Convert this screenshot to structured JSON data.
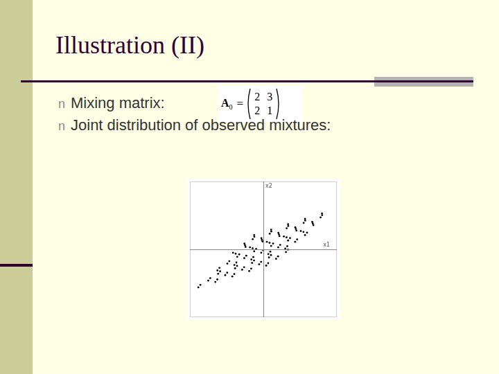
{
  "slide": {
    "title": "Illustration (II)",
    "bullet": "n",
    "bullets": [
      "Mixing matrix:",
      "Joint distribution of observed mixtures:"
    ],
    "matrix": {
      "name": "A",
      "subscript": "0",
      "relation": "=",
      "rows": [
        [
          2,
          3
        ],
        [
          2,
          1
        ]
      ]
    }
  },
  "chart_data": {
    "type": "scatter",
    "x_label": "x1",
    "y_label": "x2",
    "color": "#000000",
    "marker": "dot",
    "xlim": [
      -5.2,
      5.2
    ],
    "ylim": [
      -5,
      5
    ],
    "tick_labels": false,
    "grid": false,
    "x": [
      -4.6,
      -3.4,
      -2.2,
      -1.0,
      0.2,
      -3.9,
      -2.7,
      -1.5,
      -0.3,
      0.9,
      -3.2,
      -2.0,
      -0.8,
      0.4,
      1.6,
      -3.25,
      -2.05,
      -0.85,
      0.35,
      1.55,
      -2.55,
      -1.35,
      -0.15,
      1.05,
      2.25,
      -1.85,
      -0.65,
      0.55,
      1.75,
      2.95,
      -1.96,
      -0.76,
      0.44,
      1.64,
      2.84,
      -1.26,
      -0.06,
      1.14,
      2.34,
      3.54,
      -1.34,
      -0.14,
      1.06,
      2.26,
      3.46,
      -0.64,
      0.56,
      1.76,
      2.96,
      4.16,
      -4.46,
      -3.26,
      -2.06,
      -0.86,
      0.34,
      -3.76,
      -2.56,
      -1.36,
      -0.16,
      1.04,
      -3.06,
      -1.86,
      -0.66,
      0.54,
      1.74,
      -3.11,
      -1.91,
      -0.71,
      0.49,
      1.69,
      -2.41,
      -1.21,
      -0.01,
      1.19,
      2.39,
      -1.71,
      -0.51,
      0.69,
      1.89,
      3.09,
      -2.15,
      -0.95,
      0.25,
      1.45,
      2.65,
      -1.3,
      -0.1,
      1.1,
      2.3,
      3.5,
      -0.75,
      0.45,
      1.65,
      2.85,
      4.05,
      -0.65,
      0.55,
      1.75,
      2.95,
      4.15
    ],
    "values": [
      -2.8,
      -2.4,
      -2.0,
      -1.6,
      -1.2,
      -2.3,
      -1.9,
      -1.5,
      -1.1,
      -0.7,
      -1.8,
      -1.4,
      -1.0,
      -0.6,
      -0.2,
      -1.55,
      -1.15,
      -0.75,
      -0.35,
      0.05,
      -1.05,
      -0.65,
      -0.25,
      0.15,
      0.55,
      -0.55,
      -0.15,
      0.25,
      0.65,
      1.05,
      -0.32,
      0.08,
      0.48,
      0.88,
      1.28,
      0.18,
      0.58,
      0.98,
      1.38,
      1.78,
      0.42,
      0.82,
      1.22,
      1.62,
      2.02,
      0.92,
      1.32,
      1.72,
      2.12,
      2.52,
      -2.62,
      -2.22,
      -1.82,
      -1.42,
      -1.02,
      -2.12,
      -1.72,
      -1.32,
      -0.92,
      -0.52,
      -1.62,
      -1.22,
      -0.82,
      -0.42,
      -0.02,
      -1.37,
      -0.97,
      -0.57,
      -0.17,
      0.23,
      -0.87,
      -0.47,
      -0.07,
      0.33,
      0.73,
      -0.37,
      0.03,
      0.43,
      0.83,
      1.23,
      -0.25,
      0.15,
      0.55,
      0.95,
      1.35,
      0.3,
      0.7,
      1.1,
      1.5,
      1.9,
      0.75,
      1.15,
      1.55,
      1.95,
      2.35,
      1.05,
      1.45,
      1.85,
      2.25,
      2.65
    ]
  }
}
